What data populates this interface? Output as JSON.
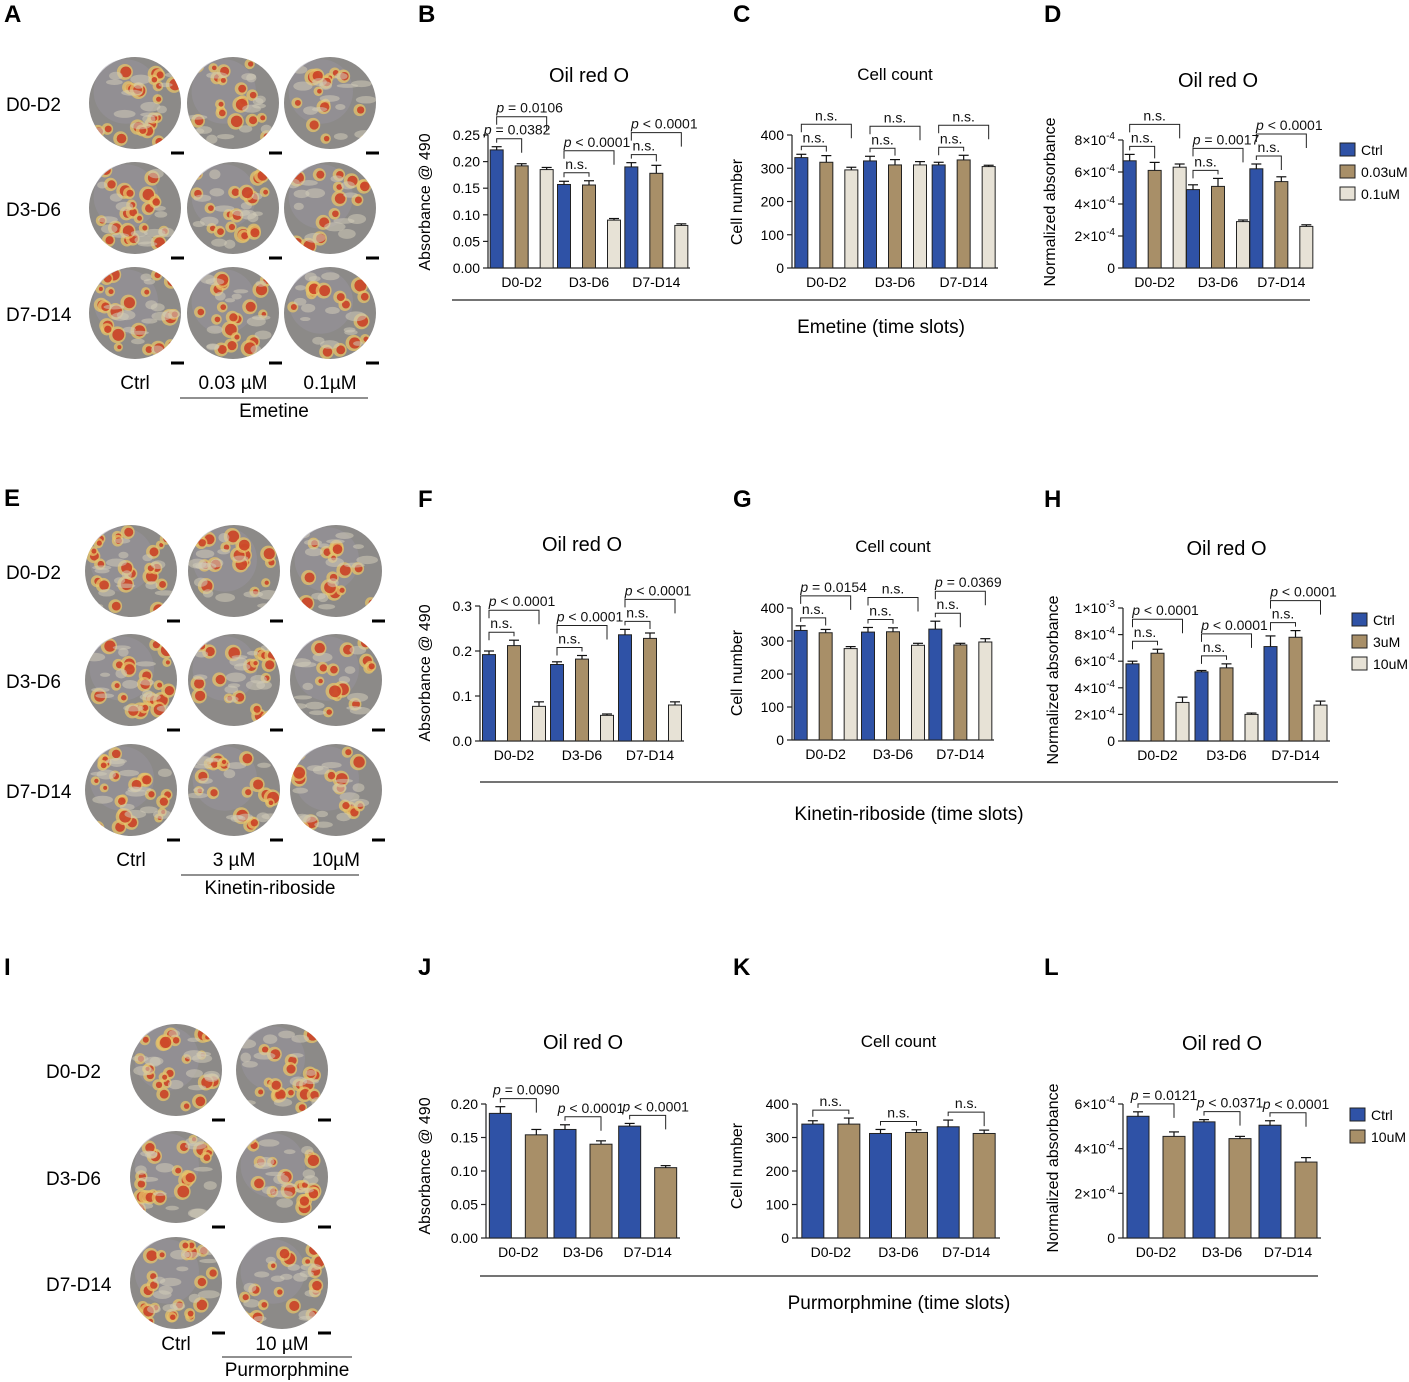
{
  "colors": {
    "ctrl": "#2f52a6",
    "mid": "#a88f68",
    "high": "#e7e2d6",
    "stroke": "#222222"
  },
  "rows": [
    {
      "images": {
        "letter": "A",
        "row_labels": [
          "D0-D2",
          "D3-D6",
          "D7-D14"
        ],
        "col_labels": [
          "Ctrl",
          "0.03 µM",
          "0.1µM"
        ],
        "group_label": "Emetine"
      },
      "group_axis_label": "Emetine (time slots)",
      "legend": [
        "Ctrl",
        "0.03uM",
        "0.1uM"
      ]
    },
    {
      "images": {
        "letter": "E",
        "row_labels": [
          "D0-D2",
          "D3-D6",
          "D7-D14"
        ],
        "col_labels": [
          "Ctrl",
          "3 µM",
          "10µM"
        ],
        "group_label": "Kinetin-riboside"
      },
      "group_axis_label": "Kinetin-riboside (time slots)",
      "legend": [
        "Ctrl",
        "3uM",
        "10uM"
      ]
    },
    {
      "images": {
        "letter": "I",
        "row_labels": [
          "D0-D2",
          "D3-D6",
          "D7-D14"
        ],
        "col_labels": [
          "Ctrl",
          "10 µM"
        ],
        "group_label": "Purmorphmine"
      },
      "group_axis_label": "Purmorphmine (time slots)",
      "legend": [
        "Ctrl",
        "10uM"
      ]
    }
  ],
  "chart_data": [
    {
      "letter": "B",
      "type": "bar",
      "title": "Oil red O",
      "ylabel": "Absorbance @ 490",
      "categories": [
        "D0-D2",
        "D3-D6",
        "D7-D14"
      ],
      "ylim": [
        0,
        0.25
      ],
      "yticks": [
        "0.00",
        "0.05",
        "0.10",
        "0.15",
        "0.20",
        "0.25"
      ],
      "series": [
        {
          "name": "Ctrl",
          "values": [
            0.222,
            0.157,
            0.19
          ],
          "errors": [
            0.006,
            0.006,
            0.008
          ]
        },
        {
          "name": "0.03uM",
          "values": [
            0.192,
            0.156,
            0.178
          ],
          "errors": [
            0.004,
            0.008,
            0.015
          ]
        },
        {
          "name": "0.1uM",
          "values": [
            0.185,
            0.09,
            0.08
          ],
          "errors": [
            0.004,
            0.003,
            0.003
          ]
        }
      ],
      "comparisons": [
        {
          "category": 0,
          "from": 0,
          "to": 1,
          "level": 0,
          "label": "p = 0.0382"
        },
        {
          "category": 0,
          "from": 0,
          "to": 2,
          "level": 1,
          "label": "p = 0.0106"
        },
        {
          "category": 1,
          "from": 0,
          "to": 1,
          "level": 0,
          "label": "n.s."
        },
        {
          "category": 1,
          "from": 0,
          "to": 2,
          "level": 1,
          "label": "p < 0.0001"
        },
        {
          "category": 2,
          "from": 0,
          "to": 1,
          "level": 0,
          "label": "n.s."
        },
        {
          "category": 2,
          "from": 0,
          "to": 2,
          "level": 1,
          "label": "p < 0.0001"
        }
      ]
    },
    {
      "letter": "C",
      "type": "bar",
      "title": "Cell count",
      "ylabel": "Cell number",
      "categories": [
        "D0-D2",
        "D3-D6",
        "D7-D14"
      ],
      "ylim": [
        0,
        400
      ],
      "yticks": [
        "0",
        "100",
        "200",
        "300",
        "400"
      ],
      "series": [
        {
          "name": "Ctrl",
          "values": [
            332,
            322,
            310
          ],
          "errors": [
            10,
            14,
            8
          ]
        },
        {
          "name": "0.03uM",
          "values": [
            318,
            310,
            325
          ],
          "errors": [
            20,
            16,
            14
          ]
        },
        {
          "name": "0.1uM",
          "values": [
            295,
            310,
            305
          ],
          "errors": [
            8,
            10,
            4
          ]
        }
      ],
      "comparisons": [
        {
          "category": 0,
          "from": 0,
          "to": 1,
          "level": 0,
          "label": "n.s."
        },
        {
          "category": 0,
          "from": 0,
          "to": 2,
          "level": 1,
          "label": "n.s."
        },
        {
          "category": 1,
          "from": 0,
          "to": 1,
          "level": 0,
          "label": "n.s."
        },
        {
          "category": 1,
          "from": 0,
          "to": 2,
          "level": 1,
          "label": "n.s."
        },
        {
          "category": 2,
          "from": 0,
          "to": 1,
          "level": 0,
          "label": "n.s."
        },
        {
          "category": 2,
          "from": 0,
          "to": 2,
          "level": 1,
          "label": "n.s."
        }
      ]
    },
    {
      "letter": "D",
      "type": "bar",
      "title": "Oil red O",
      "ylabel": "Normalized absorbance",
      "categories": [
        "D0-D2",
        "D3-D6",
        "D7-D14"
      ],
      "ylim": [
        0,
        0.0008
      ],
      "yticks": [
        {
          "m": "0",
          "e": ""
        },
        {
          "m": "2×10",
          "e": "-4"
        },
        {
          "m": "4×10",
          "e": "-4"
        },
        {
          "m": "6×10",
          "e": "-4"
        },
        {
          "m": "8×10",
          "e": "-4"
        }
      ],
      "series": [
        {
          "name": "Ctrl",
          "values": [
            0.00067,
            0.00049,
            0.00062
          ],
          "errors": [
            4e-05,
            3e-05,
            3e-05
          ]
        },
        {
          "name": "0.03uM",
          "values": [
            0.00061,
            0.00051,
            0.00054
          ],
          "errors": [
            5e-05,
            5e-05,
            3e-05
          ]
        },
        {
          "name": "0.1uM",
          "values": [
            0.00063,
            0.00029,
            0.00026
          ],
          "errors": [
            2e-05,
            1e-05,
            1e-05
          ]
        }
      ],
      "comparisons": [
        {
          "category": 0,
          "from": 0,
          "to": 1,
          "level": 0,
          "label": "n.s."
        },
        {
          "category": 0,
          "from": 0,
          "to": 2,
          "level": 1,
          "label": "n.s."
        },
        {
          "category": 1,
          "from": 0,
          "to": 1,
          "level": 0,
          "label": "n.s."
        },
        {
          "category": 1,
          "from": 0,
          "to": 2,
          "level": 1,
          "label": "p = 0.0017"
        },
        {
          "category": 2,
          "from": 0,
          "to": 1,
          "level": 0,
          "label": "n.s."
        },
        {
          "category": 2,
          "from": 0,
          "to": 2,
          "level": 1,
          "label": "p < 0.0001"
        }
      ]
    },
    {
      "letter": "F",
      "type": "bar",
      "title": "Oil red O",
      "ylabel": "Absorbance @ 490",
      "categories": [
        "D0-D2",
        "D3-D6",
        "D7-D14"
      ],
      "ylim": [
        0,
        0.3
      ],
      "yticks": [
        "0.0",
        "0.1",
        "0.2",
        "0.3"
      ],
      "series": [
        {
          "name": "Ctrl",
          "values": [
            0.192,
            0.17,
            0.236
          ],
          "errors": [
            0.008,
            0.006,
            0.012
          ]
        },
        {
          "name": "3uM",
          "values": [
            0.212,
            0.182,
            0.228
          ],
          "errors": [
            0.012,
            0.008,
            0.012
          ]
        },
        {
          "name": "10uM",
          "values": [
            0.077,
            0.057,
            0.08
          ],
          "errors": [
            0.01,
            0.003,
            0.007
          ]
        }
      ],
      "comparisons": [
        {
          "category": 0,
          "from": 0,
          "to": 1,
          "level": 0,
          "label": "n.s."
        },
        {
          "category": 0,
          "from": 0,
          "to": 2,
          "level": 1,
          "label": "p < 0.0001"
        },
        {
          "category": 1,
          "from": 0,
          "to": 1,
          "level": 0,
          "label": "n.s."
        },
        {
          "category": 1,
          "from": 0,
          "to": 2,
          "level": 1,
          "label": "p < 0.0001"
        },
        {
          "category": 2,
          "from": 0,
          "to": 1,
          "level": 0,
          "label": "n.s."
        },
        {
          "category": 2,
          "from": 0,
          "to": 2,
          "level": 1,
          "label": "p < 0.0001"
        }
      ]
    },
    {
      "letter": "G",
      "type": "bar",
      "title": "Cell count",
      "ylabel": "Cell number",
      "categories": [
        "D0-D2",
        "D3-D6",
        "D7-D14"
      ],
      "ylim": [
        0,
        400
      ],
      "yticks": [
        "0",
        "100",
        "200",
        "300",
        "400"
      ],
      "series": [
        {
          "name": "Ctrl",
          "values": [
            332,
            327,
            336
          ],
          "errors": [
            14,
            14,
            24
          ]
        },
        {
          "name": "3uM",
          "values": [
            325,
            328,
            288
          ],
          "errors": [
            10,
            12,
            5
          ]
        },
        {
          "name": "10uM",
          "values": [
            277,
            287,
            297
          ],
          "errors": [
            6,
            6,
            10
          ]
        }
      ],
      "comparisons": [
        {
          "category": 0,
          "from": 0,
          "to": 1,
          "level": 0,
          "label": "n.s."
        },
        {
          "category": 0,
          "from": 0,
          "to": 2,
          "level": 1,
          "label": "p = 0.0154"
        },
        {
          "category": 1,
          "from": 0,
          "to": 1,
          "level": 0,
          "label": "n.s."
        },
        {
          "category": 1,
          "from": 0,
          "to": 2,
          "level": 1,
          "label": "n.s."
        },
        {
          "category": 2,
          "from": 0,
          "to": 1,
          "level": 0,
          "label": "n.s."
        },
        {
          "category": 2,
          "from": 0,
          "to": 2,
          "level": 1,
          "label": "p = 0.0369"
        }
      ]
    },
    {
      "letter": "H",
      "type": "bar",
      "title": "Oil red O",
      "ylabel": "Normalized absorbance",
      "categories": [
        "D0-D2",
        "D3-D6",
        "D7-D14"
      ],
      "ylim": [
        0,
        0.001
      ],
      "yticks": [
        {
          "m": "0",
          "e": ""
        },
        {
          "m": "2×10",
          "e": "-4"
        },
        {
          "m": "4×10",
          "e": "-4"
        },
        {
          "m": "6×10",
          "e": "-4"
        },
        {
          "m": "8×10",
          "e": "-4"
        },
        {
          "m": "1×10",
          "e": "-3"
        }
      ],
      "series": [
        {
          "name": "Ctrl",
          "values": [
            0.00058,
            0.00052,
            0.00071
          ],
          "errors": [
            2e-05,
            1e-05,
            8e-05
          ]
        },
        {
          "name": "3uM",
          "values": [
            0.00066,
            0.00055,
            0.00078
          ],
          "errors": [
            3e-05,
            3e-05,
            5e-05
          ]
        },
        {
          "name": "10uM",
          "values": [
            0.00029,
            0.0002,
            0.00027
          ],
          "errors": [
            4e-05,
            1e-05,
            3e-05
          ]
        }
      ],
      "comparisons": [
        {
          "category": 0,
          "from": 0,
          "to": 1,
          "level": 0,
          "label": "n.s."
        },
        {
          "category": 0,
          "from": 0,
          "to": 2,
          "level": 1,
          "label": "p < 0.0001"
        },
        {
          "category": 1,
          "from": 0,
          "to": 1,
          "level": 0,
          "label": "n.s."
        },
        {
          "category": 1,
          "from": 0,
          "to": 2,
          "level": 1,
          "label": "p < 0.0001"
        },
        {
          "category": 2,
          "from": 0,
          "to": 1,
          "level": 0,
          "label": "n.s."
        },
        {
          "category": 2,
          "from": 0,
          "to": 2,
          "level": 1,
          "label": "p < 0.0001"
        }
      ]
    },
    {
      "letter": "J",
      "type": "bar",
      "title": "Oil red O",
      "ylabel": "Absorbance @ 490",
      "categories": [
        "D0-D2",
        "D3-D6",
        "D7-D14"
      ],
      "ylim": [
        0,
        0.2
      ],
      "yticks": [
        "0.00",
        "0.05",
        "0.10",
        "0.15",
        "0.20"
      ],
      "series": [
        {
          "name": "Ctrl",
          "values": [
            0.186,
            0.162,
            0.167
          ],
          "errors": [
            0.01,
            0.007,
            0.004
          ]
        },
        {
          "name": "10uM",
          "values": [
            0.154,
            0.14,
            0.105
          ],
          "errors": [
            0.008,
            0.005,
            0.003
          ]
        }
      ],
      "comparisons": [
        {
          "category": 0,
          "from": 0,
          "to": 1,
          "level": 0,
          "label": "p = 0.0090"
        },
        {
          "category": 1,
          "from": 0,
          "to": 1,
          "level": 0,
          "label": "p < 0.0001"
        },
        {
          "category": 2,
          "from": 0,
          "to": 1,
          "level": 0,
          "label": "p < 0.0001"
        }
      ]
    },
    {
      "letter": "K",
      "type": "bar",
      "title": "Cell count",
      "ylabel": "Cell number",
      "categories": [
        "D0-D2",
        "D3-D6",
        "D7-D14"
      ],
      "ylim": [
        0,
        400
      ],
      "yticks": [
        "0",
        "100",
        "200",
        "300",
        "400"
      ],
      "series": [
        {
          "name": "Ctrl",
          "values": [
            340,
            312,
            332
          ],
          "errors": [
            10,
            12,
            20
          ]
        },
        {
          "name": "10uM",
          "values": [
            340,
            315,
            312
          ],
          "errors": [
            18,
            8,
            10
          ]
        }
      ],
      "comparisons": [
        {
          "category": 0,
          "from": 0,
          "to": 1,
          "level": 0,
          "label": "n.s."
        },
        {
          "category": 1,
          "from": 0,
          "to": 1,
          "level": 0,
          "label": "n.s."
        },
        {
          "category": 2,
          "from": 0,
          "to": 1,
          "level": 0,
          "label": "n.s."
        }
      ]
    },
    {
      "letter": "L",
      "type": "bar",
      "title": "Oil red O",
      "ylabel": "Normalized absorbance",
      "categories": [
        "D0-D2",
        "D3-D6",
        "D7-D14"
      ],
      "ylim": [
        0,
        0.0006
      ],
      "yticks": [
        {
          "m": "0",
          "e": ""
        },
        {
          "m": "2×10",
          "e": "-4"
        },
        {
          "m": "4×10",
          "e": "-4"
        },
        {
          "m": "6×10",
          "e": "-4"
        }
      ],
      "series": [
        {
          "name": "Ctrl",
          "values": [
            0.000545,
            0.00052,
            0.000505
          ],
          "errors": [
            2e-05,
            1e-05,
            2e-05
          ]
        },
        {
          "name": "10uM",
          "values": [
            0.000455,
            0.000445,
            0.00034
          ],
          "errors": [
            2e-05,
            1e-05,
            2e-05
          ]
        }
      ],
      "comparisons": [
        {
          "category": 0,
          "from": 0,
          "to": 1,
          "level": 0,
          "label": "p = 0.0121"
        },
        {
          "category": 1,
          "from": 0,
          "to": 1,
          "level": 0,
          "label": "p < 0.0371"
        },
        {
          "category": 2,
          "from": 0,
          "to": 1,
          "level": 0,
          "label": "p < 0.0001"
        }
      ]
    }
  ]
}
